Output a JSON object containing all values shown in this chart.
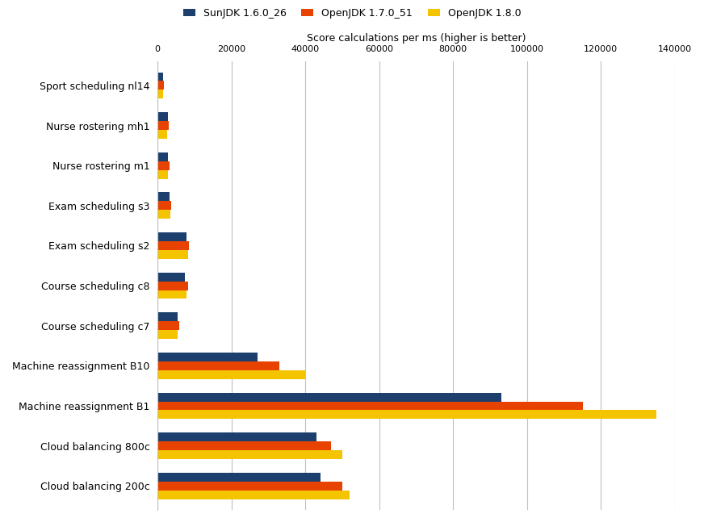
{
  "title": "",
  "xlabel": "Score calculations per ms (higher is better)",
  "legend_labels": [
    "SunJDK 1.6.0_26",
    "OpenJDK 1.7.0_51",
    "OpenJDK 1.8.0"
  ],
  "categories": [
    "Cloud balancing 200c",
    "Cloud balancing 800c",
    "Machine reassignment B1",
    "Machine reassignment B10",
    "Course scheduling c7",
    "Course scheduling c8",
    "Exam scheduling s2",
    "Exam scheduling s3",
    "Nurse rostering m1",
    "Nurse rostering mh1",
    "Sport scheduling nl14"
  ],
  "series": {
    "SunJDK 1.6.0_26": [
      44000,
      43000,
      93000,
      27000,
      5500,
      7500,
      7800,
      3200,
      2800,
      2800,
      1500
    ],
    "OpenJDK 1.7.0_51": [
      50000,
      47000,
      115000,
      33000,
      5800,
      8200,
      8400,
      3700,
      3200,
      3100,
      1700
    ],
    "OpenJDK 1.8.0": [
      52000,
      50000,
      135000,
      40000,
      5500,
      7800,
      8200,
      3500,
      2900,
      2700,
      1400
    ]
  },
  "bar_colors": [
    "#1c3f6e",
    "#e84200",
    "#f5c400"
  ],
  "xlim": [
    0,
    140000
  ],
  "xticks": [
    0,
    20000,
    40000,
    60000,
    80000,
    100000,
    120000,
    140000
  ],
  "xtick_labels": [
    "0",
    "20000",
    "40000",
    "60000",
    "80000",
    "100000",
    "120000",
    "140000"
  ],
  "background_color": "#ffffff",
  "grid_color": "#c0c0c0"
}
